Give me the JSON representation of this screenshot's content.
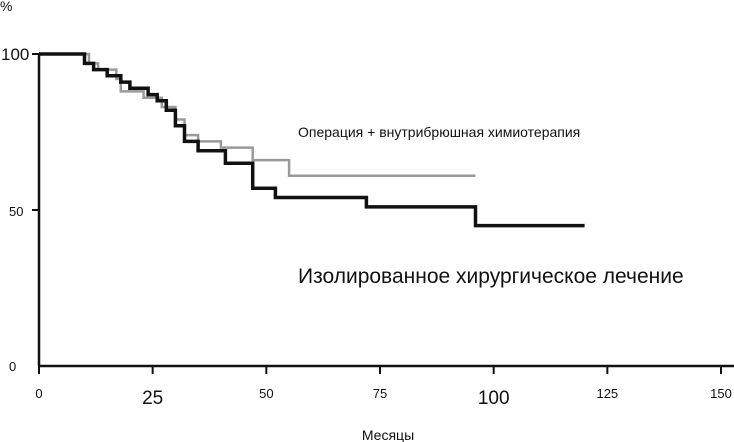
{
  "chart_data": {
    "type": "line",
    "step": true,
    "ylabel": "%",
    "xlabel": "Месяцы",
    "xlim": [
      0,
      150
    ],
    "ylim": [
      0,
      100
    ],
    "x_ticks": [
      "0",
      "25",
      "50",
      "75",
      "100",
      "125",
      "150"
    ],
    "y_ticks": [
      "0",
      "50",
      "100"
    ],
    "grid": false,
    "series": [
      {
        "name": "Операция + внутрибрюшная химиотерапия",
        "color": "#9a9a9a",
        "points": [
          [
            0,
            100
          ],
          [
            11,
            100
          ],
          [
            11,
            97
          ],
          [
            13,
            97
          ],
          [
            13,
            95
          ],
          [
            17,
            95
          ],
          [
            17,
            92
          ],
          [
            18,
            92
          ],
          [
            18,
            88
          ],
          [
            23,
            88
          ],
          [
            23,
            86
          ],
          [
            27,
            86
          ],
          [
            27,
            83
          ],
          [
            30,
            83
          ],
          [
            30,
            79
          ],
          [
            32,
            79
          ],
          [
            32,
            74
          ],
          [
            35,
            74
          ],
          [
            35,
            72
          ],
          [
            40,
            72
          ],
          [
            40,
            70
          ],
          [
            47,
            70
          ],
          [
            47,
            66
          ],
          [
            55,
            66
          ],
          [
            55,
            61
          ],
          [
            96,
            61
          ]
        ]
      },
      {
        "name": "Изолированное хирургическое лечение",
        "color": "#111111",
        "points": [
          [
            0,
            100
          ],
          [
            10,
            100
          ],
          [
            10,
            97
          ],
          [
            12,
            97
          ],
          [
            12,
            95
          ],
          [
            15,
            95
          ],
          [
            15,
            93
          ],
          [
            18,
            93
          ],
          [
            18,
            91
          ],
          [
            20,
            91
          ],
          [
            20,
            89
          ],
          [
            24,
            89
          ],
          [
            24,
            87
          ],
          [
            26,
            87
          ],
          [
            26,
            85
          ],
          [
            28,
            85
          ],
          [
            28,
            82
          ],
          [
            30,
            82
          ],
          [
            30,
            77
          ],
          [
            32,
            77
          ],
          [
            32,
            72
          ],
          [
            35,
            72
          ],
          [
            35,
            69
          ],
          [
            41,
            69
          ],
          [
            41,
            65
          ],
          [
            47,
            65
          ],
          [
            47,
            57
          ],
          [
            52,
            57
          ],
          [
            52,
            54
          ],
          [
            72,
            54
          ],
          [
            72,
            51
          ],
          [
            96,
            51
          ],
          [
            96,
            45
          ],
          [
            120,
            45
          ]
        ]
      }
    ]
  }
}
